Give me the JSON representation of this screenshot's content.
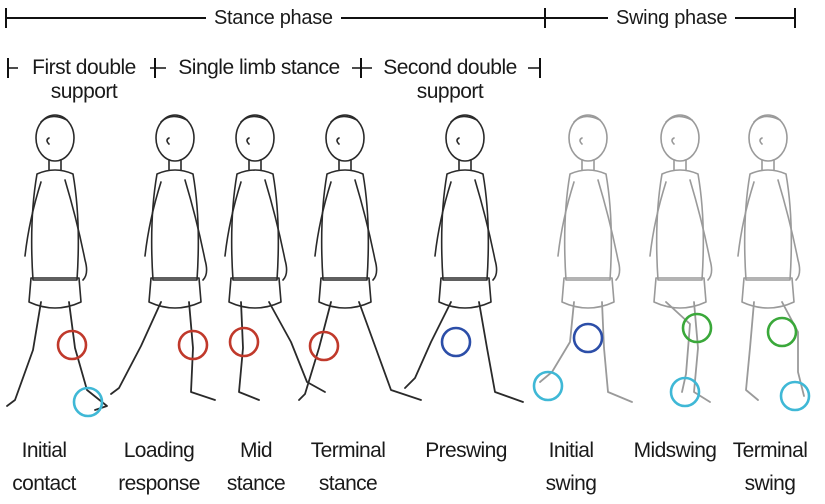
{
  "phases": {
    "stance": "Stance phase",
    "swing": "Swing phase"
  },
  "subphases": {
    "first_double": [
      "First double",
      "support"
    ],
    "single_limb": "Single limb stance",
    "second_double": [
      "Second double",
      "support"
    ]
  },
  "figures": [
    {
      "caption": [
        "Initial",
        "contact"
      ],
      "style": "dark",
      "knee": "#c0392b",
      "ankle": "#3fb8d6"
    },
    {
      "caption": [
        "Loading",
        "response"
      ],
      "style": "dark",
      "knee": "#c0392b",
      "ankle": null
    },
    {
      "caption": [
        "Mid",
        "stance"
      ],
      "style": "dark",
      "knee": "#c0392b",
      "ankle": null
    },
    {
      "caption": [
        "Terminal",
        "stance"
      ],
      "style": "dark",
      "knee": "#c0392b",
      "ankle": null
    },
    {
      "caption": [
        "Preswing",
        ""
      ],
      "style": "dark",
      "knee": "#2c4ea8",
      "ankle": null
    },
    {
      "caption": [
        "Initial",
        "swing"
      ],
      "style": "light",
      "knee": "#2c4ea8",
      "ankle": "#3fb8d6"
    },
    {
      "caption": [
        "Midswing",
        ""
      ],
      "style": "light",
      "knee": "#3aa83a",
      "ankle": "#3fb8d6"
    },
    {
      "caption": [
        "Terminal",
        "swing"
      ],
      "style": "light",
      "knee": "#3aa83a",
      "ankle": "#3fb8d6"
    }
  ]
}
